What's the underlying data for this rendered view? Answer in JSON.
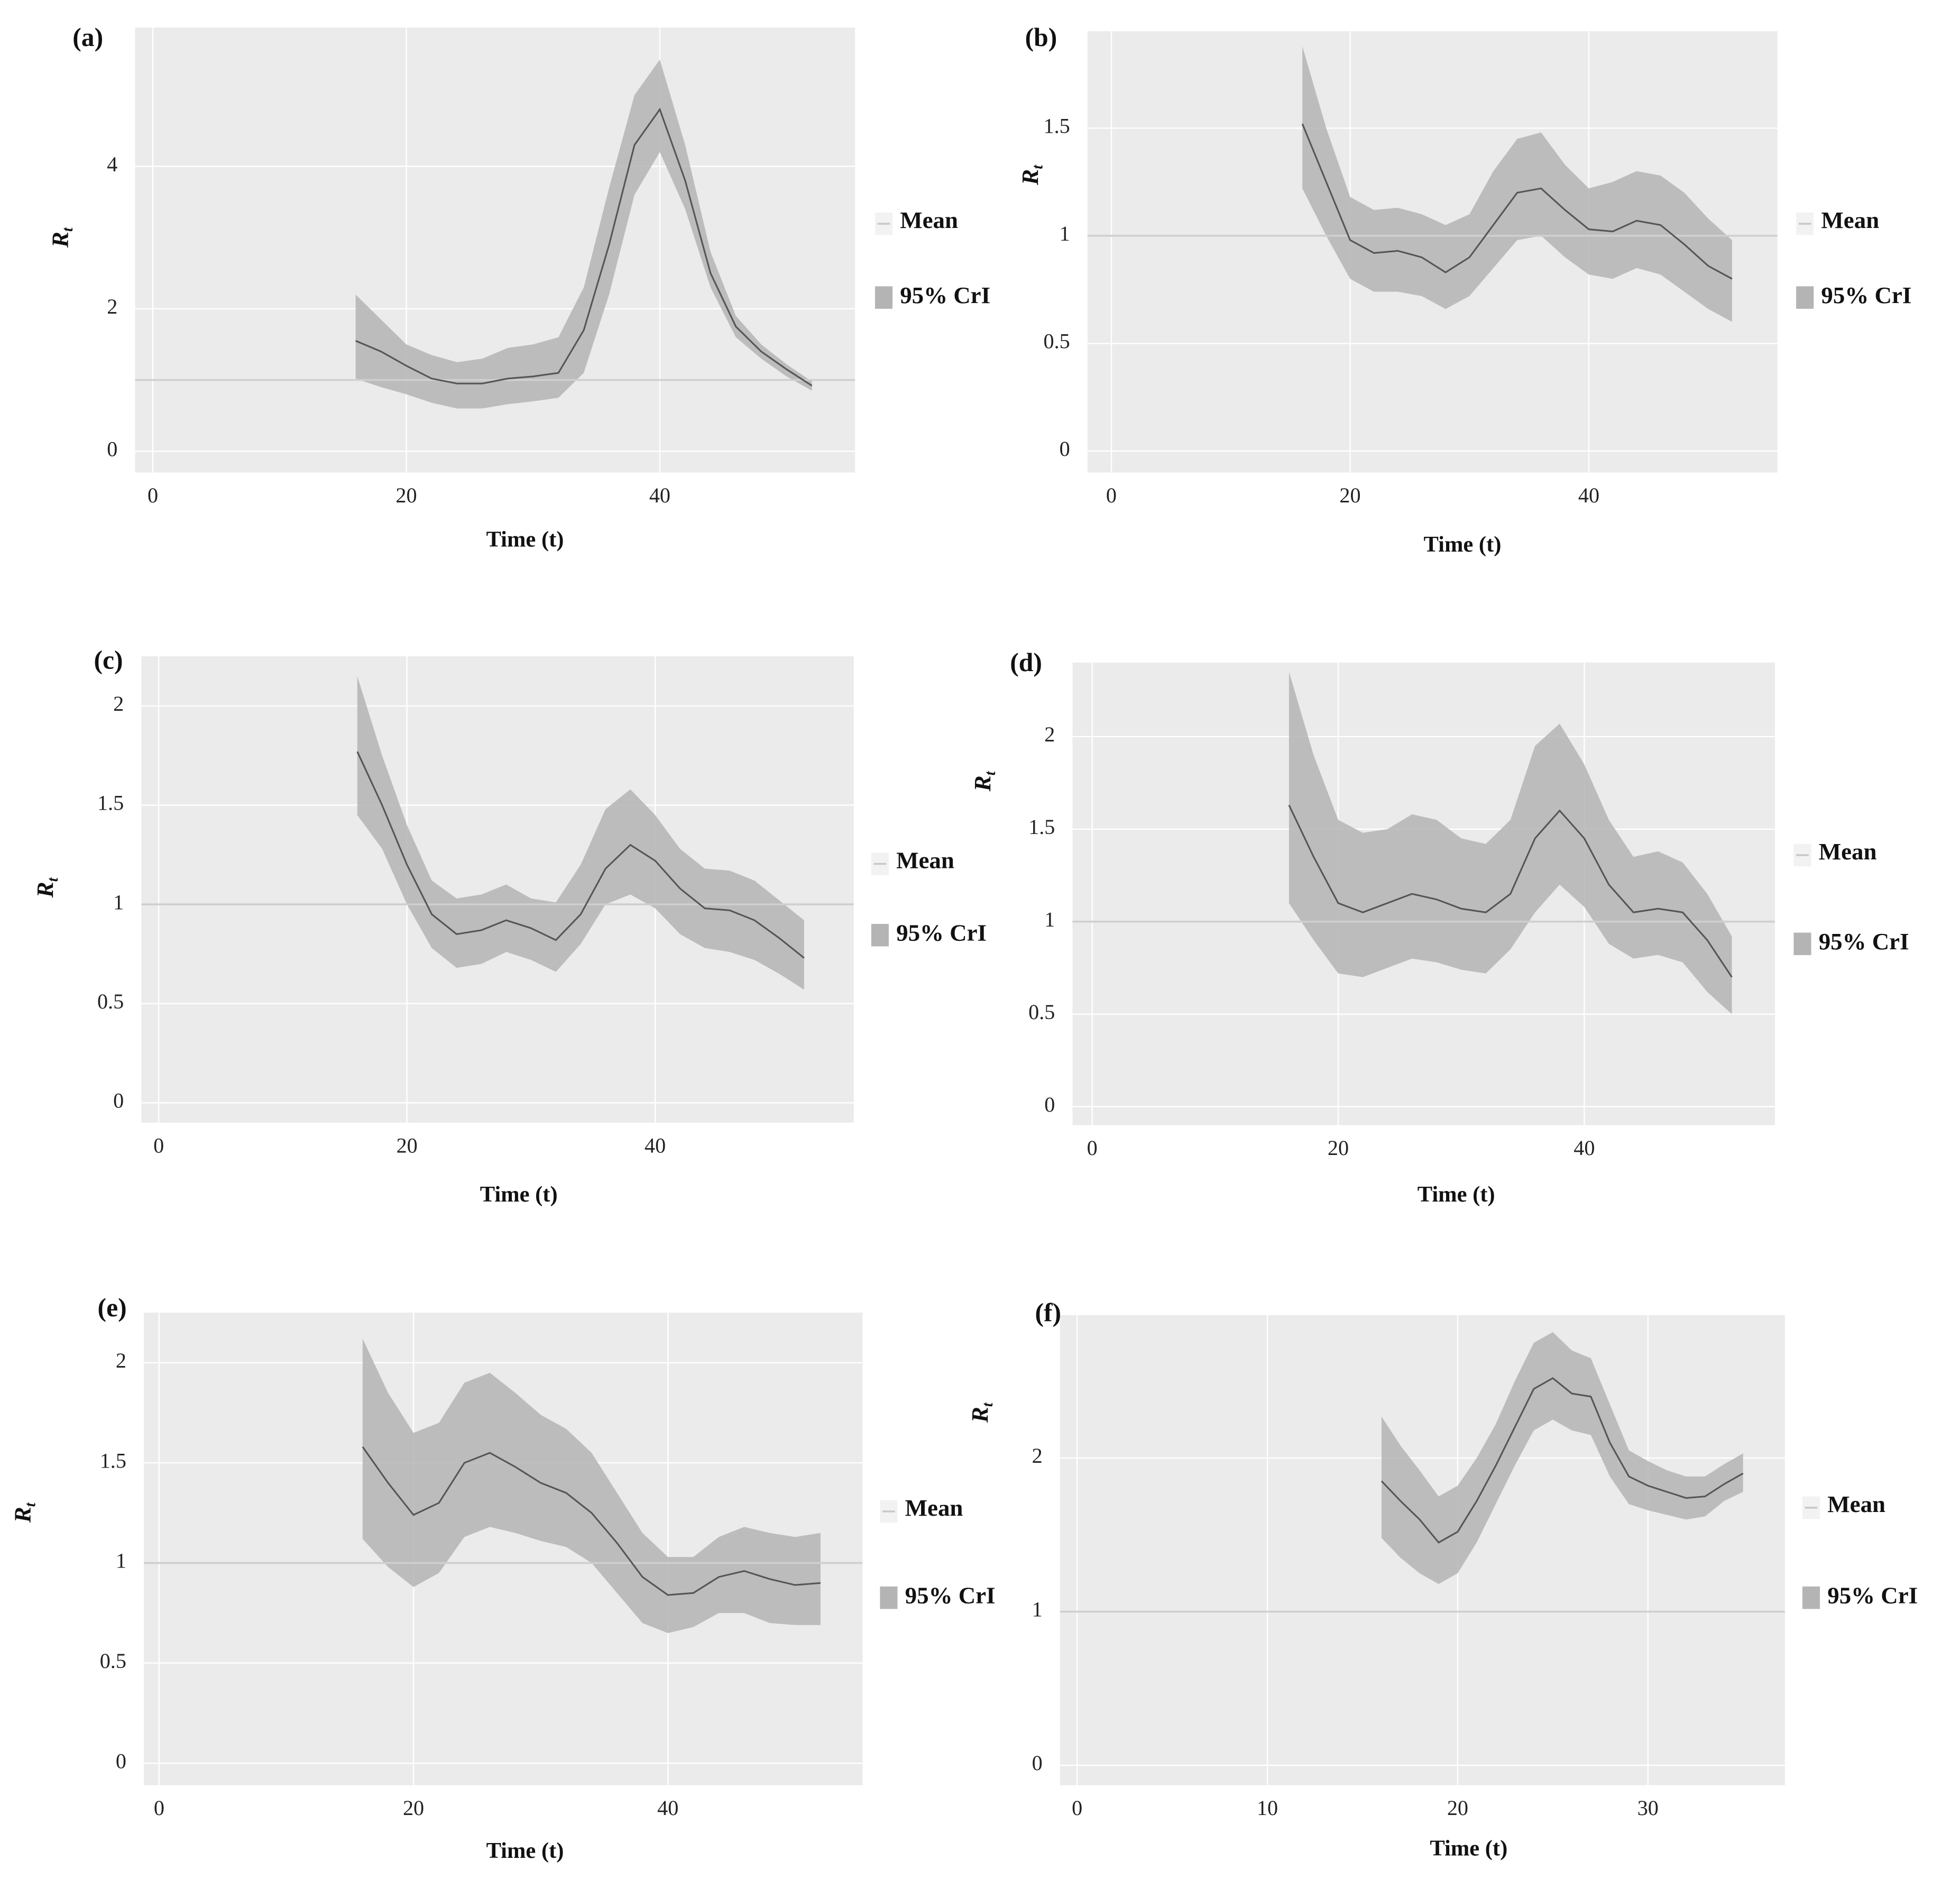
{
  "chart_data": [
    {
      "type": "line",
      "title": "(a)",
      "x_label": "Time (t)",
      "y_label": {
        "main": "R",
        "sub": "t"
      },
      "x": [
        16,
        18,
        20,
        22,
        24,
        26,
        28,
        30,
        32,
        34,
        36,
        38,
        40,
        42,
        44,
        46,
        48,
        50,
        52
      ],
      "series": [
        {
          "name": "Mean",
          "color": "#555555",
          "values": [
            1.55,
            1.4,
            1.2,
            1.02,
            0.95,
            0.95,
            1.02,
            1.05,
            1.1,
            1.7,
            2.9,
            4.3,
            4.8,
            3.8,
            2.5,
            1.75,
            1.4,
            1.15,
            0.92
          ]
        },
        {
          "name": "95% CrI",
          "color": "#b4b4b4",
          "lower": [
            1.02,
            0.9,
            0.8,
            0.68,
            0.6,
            0.6,
            0.66,
            0.7,
            0.75,
            1.1,
            2.2,
            3.6,
            4.2,
            3.4,
            2.3,
            1.6,
            1.3,
            1.05,
            0.85
          ],
          "upper": [
            2.2,
            1.85,
            1.5,
            1.35,
            1.25,
            1.3,
            1.45,
            1.5,
            1.6,
            2.3,
            3.7,
            5.0,
            5.5,
            4.3,
            2.8,
            1.9,
            1.5,
            1.22,
            0.98
          ]
        }
      ],
      "hline": 1,
      "xlim": [
        -1.4,
        55.4
      ],
      "ylim": [
        -0.3,
        5.95
      ],
      "xticks": [
        0,
        20,
        40
      ],
      "yticks": [
        0,
        2,
        4
      ],
      "grid": true
    },
    {
      "type": "line",
      "title": "(b)",
      "x_label": "Time (t)",
      "y_label": {
        "main": "R",
        "sub": "t"
      },
      "x": [
        16,
        18,
        20,
        22,
        24,
        26,
        28,
        30,
        32,
        34,
        36,
        38,
        40,
        42,
        44,
        46,
        48,
        50,
        52
      ],
      "series": [
        {
          "name": "Mean",
          "color": "#555555",
          "values": [
            1.52,
            1.25,
            0.98,
            0.92,
            0.93,
            0.9,
            0.83,
            0.9,
            1.05,
            1.2,
            1.22,
            1.12,
            1.03,
            1.02,
            1.07,
            1.05,
            0.96,
            0.86,
            0.8
          ]
        },
        {
          "name": "95% CrI",
          "color": "#b4b4b4",
          "lower": [
            1.22,
            1.0,
            0.8,
            0.74,
            0.74,
            0.72,
            0.66,
            0.72,
            0.85,
            0.98,
            1.0,
            0.9,
            0.82,
            0.8,
            0.85,
            0.82,
            0.74,
            0.66,
            0.6
          ],
          "upper": [
            1.88,
            1.5,
            1.18,
            1.12,
            1.13,
            1.1,
            1.05,
            1.1,
            1.3,
            1.45,
            1.48,
            1.33,
            1.22,
            1.25,
            1.3,
            1.28,
            1.2,
            1.08,
            0.98
          ]
        }
      ],
      "hline": 1,
      "xlim": [
        -2,
        55.8
      ],
      "ylim": [
        -0.1,
        1.95
      ],
      "xticks": [
        0,
        20,
        40
      ],
      "yticks": [
        0,
        0.5,
        1,
        1.5
      ],
      "grid": true
    },
    {
      "type": "line",
      "title": "(c)",
      "x_label": "Time (t)",
      "y_label": {
        "main": "R",
        "sub": "t"
      },
      "x": [
        16,
        18,
        20,
        22,
        24,
        26,
        28,
        30,
        32,
        34,
        36,
        38,
        40,
        42,
        44,
        46,
        48,
        50,
        52
      ],
      "series": [
        {
          "name": "Mean",
          "color": "#555555",
          "values": [
            1.77,
            1.5,
            1.2,
            0.95,
            0.85,
            0.87,
            0.92,
            0.88,
            0.82,
            0.95,
            1.18,
            1.3,
            1.22,
            1.08,
            0.98,
            0.97,
            0.92,
            0.83,
            0.73
          ]
        },
        {
          "name": "95% CrI",
          "color": "#b4b4b4",
          "lower": [
            1.45,
            1.28,
            1.0,
            0.78,
            0.68,
            0.7,
            0.76,
            0.72,
            0.66,
            0.8,
            1.0,
            1.05,
            0.98,
            0.85,
            0.78,
            0.76,
            0.72,
            0.65,
            0.57
          ],
          "upper": [
            2.15,
            1.75,
            1.4,
            1.12,
            1.03,
            1.05,
            1.1,
            1.03,
            1.01,
            1.2,
            1.48,
            1.58,
            1.45,
            1.28,
            1.18,
            1.17,
            1.12,
            1.02,
            0.92
          ]
        }
      ],
      "hline": 1,
      "xlim": [
        -1.4,
        56
      ],
      "ylim": [
        -0.1,
        2.25
      ],
      "xticks": [
        0,
        20,
        40
      ],
      "yticks": [
        0,
        0.5,
        1,
        1.5,
        2
      ],
      "grid": true
    },
    {
      "type": "line",
      "title": "(d)",
      "x_label": "Time (t)",
      "y_label": {
        "main": "R",
        "sub": "t"
      },
      "x": [
        16,
        18,
        20,
        22,
        24,
        26,
        28,
        30,
        32,
        34,
        36,
        38,
        40,
        42,
        44,
        46,
        48,
        50,
        52
      ],
      "series": [
        {
          "name": "Mean",
          "color": "#555555",
          "values": [
            1.63,
            1.35,
            1.1,
            1.05,
            1.1,
            1.15,
            1.12,
            1.07,
            1.05,
            1.15,
            1.45,
            1.6,
            1.45,
            1.2,
            1.05,
            1.07,
            1.05,
            0.9,
            0.7
          ]
        },
        {
          "name": "95% CrI",
          "color": "#b4b4b4",
          "lower": [
            1.1,
            0.9,
            0.72,
            0.7,
            0.75,
            0.8,
            0.78,
            0.74,
            0.72,
            0.85,
            1.05,
            1.2,
            1.08,
            0.88,
            0.8,
            0.82,
            0.78,
            0.62,
            0.5
          ],
          "upper": [
            2.35,
            1.9,
            1.55,
            1.48,
            1.5,
            1.58,
            1.55,
            1.45,
            1.42,
            1.55,
            1.95,
            2.07,
            1.85,
            1.55,
            1.35,
            1.38,
            1.32,
            1.15,
            0.92
          ]
        }
      ],
      "hline": 1,
      "xlim": [
        -1.6,
        55.5
      ],
      "ylim": [
        -0.1,
        2.4
      ],
      "xticks": [
        0,
        20,
        40
      ],
      "yticks": [
        0,
        0.5,
        1,
        1.5,
        2
      ],
      "grid": true
    },
    {
      "type": "line",
      "title": "(e)",
      "x_label": "Time (t)",
      "y_label": {
        "main": "R",
        "sub": "t"
      },
      "x": [
        16,
        18,
        20,
        22,
        24,
        26,
        28,
        30,
        32,
        34,
        36,
        38,
        40,
        42,
        44,
        46,
        48,
        50,
        52
      ],
      "series": [
        {
          "name": "Mean",
          "color": "#555555",
          "values": [
            1.58,
            1.4,
            1.24,
            1.3,
            1.5,
            1.55,
            1.48,
            1.4,
            1.35,
            1.25,
            1.1,
            0.93,
            0.84,
            0.85,
            0.93,
            0.96,
            0.92,
            0.89,
            0.9
          ]
        },
        {
          "name": "95% CrI",
          "color": "#b4b4b4",
          "lower": [
            1.12,
            0.98,
            0.88,
            0.95,
            1.13,
            1.18,
            1.15,
            1.11,
            1.08,
            1.0,
            0.85,
            0.7,
            0.65,
            0.68,
            0.75,
            0.75,
            0.7,
            0.69,
            0.69
          ],
          "upper": [
            2.12,
            1.85,
            1.65,
            1.7,
            1.9,
            1.95,
            1.85,
            1.74,
            1.67,
            1.55,
            1.35,
            1.15,
            1.03,
            1.03,
            1.13,
            1.18,
            1.15,
            1.13,
            1.15
          ]
        }
      ],
      "hline": 1,
      "xlim": [
        -1.2,
        55.3
      ],
      "ylim": [
        -0.11,
        2.25
      ],
      "xticks": [
        0,
        20,
        40
      ],
      "yticks": [
        0,
        0.5,
        1,
        1.5,
        2
      ],
      "grid": true
    },
    {
      "type": "line",
      "title": "(f)",
      "x_label": "Time (t)",
      "y_label": {
        "main": "R",
        "sub": "t"
      },
      "x": [
        16,
        17,
        18,
        19,
        20,
        21,
        22,
        23,
        24,
        25,
        26,
        27,
        28,
        29,
        30,
        31,
        32,
        33,
        34,
        35
      ],
      "series": [
        {
          "name": "Mean",
          "color": "#555555",
          "values": [
            1.85,
            1.72,
            1.6,
            1.45,
            1.52,
            1.72,
            1.95,
            2.2,
            2.45,
            2.52,
            2.42,
            2.4,
            2.1,
            1.88,
            1.82,
            1.78,
            1.74,
            1.75,
            1.83,
            1.9
          ]
        },
        {
          "name": "95% CrI",
          "color": "#b4b4b4",
          "lower": [
            1.48,
            1.35,
            1.25,
            1.18,
            1.25,
            1.45,
            1.7,
            1.95,
            2.18,
            2.25,
            2.18,
            2.15,
            1.88,
            1.7,
            1.66,
            1.63,
            1.6,
            1.62,
            1.72,
            1.78
          ],
          "upper": [
            2.27,
            2.08,
            1.92,
            1.75,
            1.82,
            2.0,
            2.22,
            2.5,
            2.75,
            2.82,
            2.7,
            2.65,
            2.35,
            2.05,
            1.98,
            1.92,
            1.88,
            1.88,
            1.96,
            2.03
          ]
        }
      ],
      "hline": 1,
      "xlim": [
        -0.9,
        37.2
      ],
      "ylim": [
        -0.13,
        2.93
      ],
      "xticks": [
        0,
        10,
        20,
        30
      ],
      "yticks": [
        0,
        1,
        2
      ],
      "grid": true
    }
  ]
}
